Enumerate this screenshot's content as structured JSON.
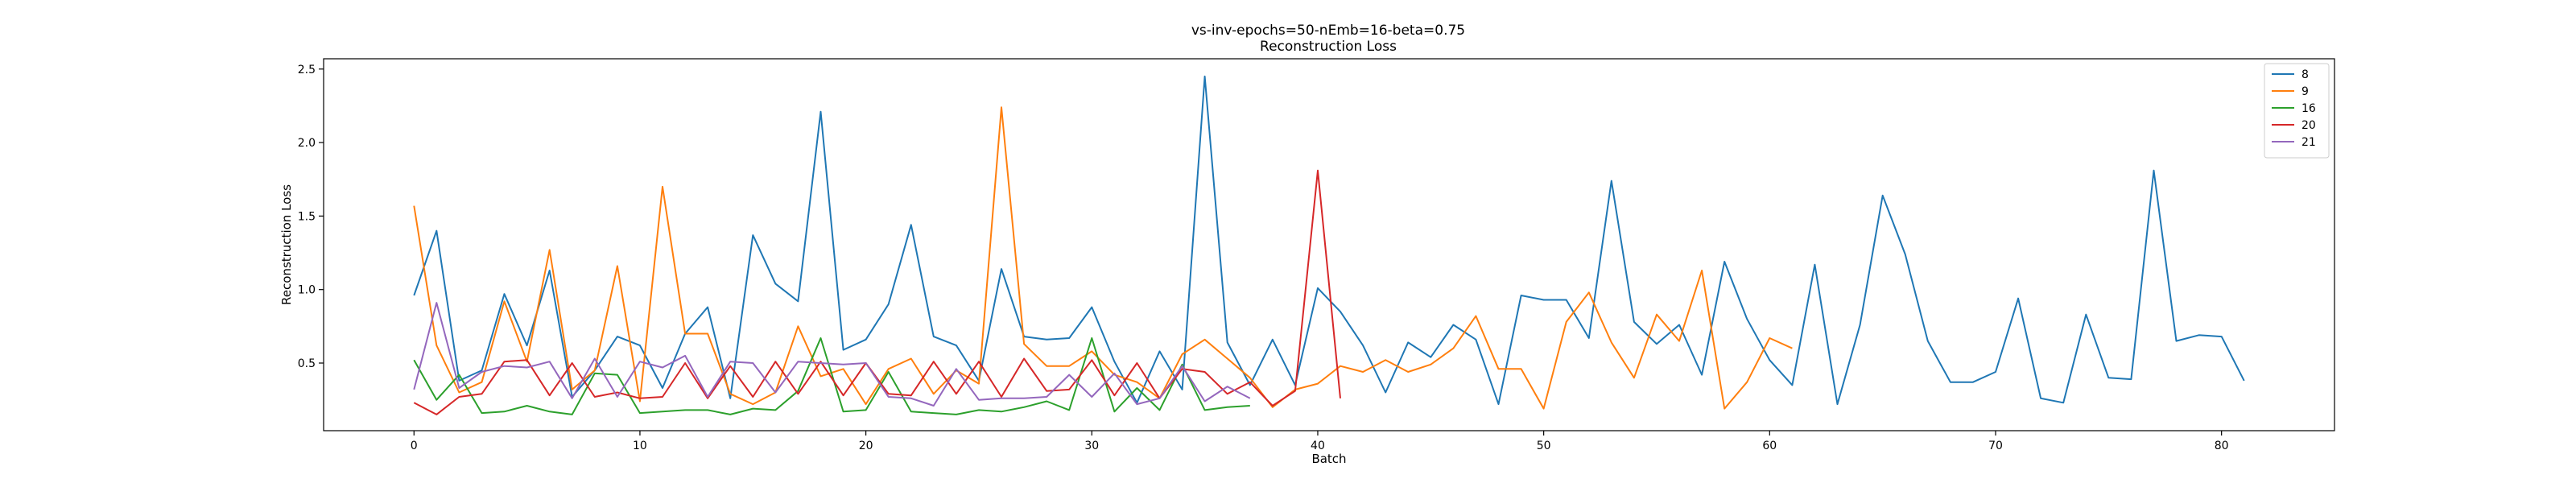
{
  "chart_data": {
    "type": "line",
    "title": "vs-inv-epochs=50-nEmb=16-beta=0.75",
    "subtitle": "Reconstruction Loss",
    "xlabel": "Batch",
    "ylabel": "Reconstruction Loss",
    "xlim": [
      -4,
      85
    ],
    "ylim": [
      0.04,
      2.57
    ],
    "xticks": [
      0,
      10,
      20,
      30,
      40,
      50,
      60,
      70,
      80
    ],
    "yticks": [
      0.5,
      1.0,
      1.5,
      2.0,
      2.5
    ],
    "ytick_labels": [
      "0.5",
      "1.0",
      "1.5",
      "2.0",
      "2.5"
    ],
    "grid": false,
    "legend_position": "top-right",
    "series": [
      {
        "name": "8",
        "color": "#1f77b4",
        "values": [
          0.96,
          1.4,
          0.38,
          0.45,
          0.97,
          0.62,
          1.13,
          0.27,
          0.45,
          0.68,
          0.62,
          0.33,
          0.7,
          0.88,
          0.26,
          1.37,
          1.04,
          0.92,
          2.21,
          0.59,
          0.66,
          0.9,
          1.44,
          0.68,
          0.62,
          0.38,
          1.14,
          0.68,
          0.66,
          0.67,
          0.88,
          0.51,
          0.23,
          0.58,
          0.32,
          2.45,
          0.64,
          0.35,
          0.66,
          0.35,
          1.01,
          0.85,
          0.62,
          0.3,
          0.64,
          0.54,
          0.76,
          0.66,
          0.22,
          0.96,
          0.93,
          0.93,
          0.67,
          1.74,
          0.78,
          0.63,
          0.76,
          0.42,
          1.19,
          0.8,
          0.52,
          0.35,
          1.17,
          0.22,
          0.76,
          1.64,
          1.24,
          0.65,
          0.37,
          0.37,
          0.44,
          0.94,
          0.26,
          0.23,
          0.83,
          0.4,
          0.39,
          1.81,
          0.65,
          0.69,
          0.68,
          0.38
        ]
      },
      {
        "name": "9",
        "color": "#ff7f0e",
        "values": [
          1.57,
          0.62,
          0.3,
          0.37,
          0.92,
          0.51,
          1.27,
          0.32,
          0.45,
          1.16,
          0.24,
          1.7,
          0.7,
          0.7,
          0.29,
          0.22,
          0.3,
          0.75,
          0.41,
          0.46,
          0.22,
          0.46,
          0.53,
          0.29,
          0.45,
          0.36,
          2.24,
          0.63,
          0.48,
          0.48,
          0.58,
          0.42,
          0.37,
          0.26,
          0.56,
          0.66,
          0.53,
          0.4,
          0.2,
          0.32,
          0.36,
          0.48,
          0.44,
          0.52,
          0.44,
          0.49,
          0.6,
          0.82,
          0.46,
          0.46,
          0.19,
          0.78,
          0.98,
          0.64,
          0.4,
          0.83,
          0.65,
          1.13,
          0.19,
          0.37,
          0.67,
          0.6
        ]
      },
      {
        "name": "16",
        "color": "#2ca02c",
        "values": [
          0.52,
          0.25,
          0.42,
          0.16,
          0.17,
          0.21,
          0.17,
          0.15,
          0.43,
          0.42,
          0.16,
          0.17,
          0.18,
          0.18,
          0.15,
          0.19,
          0.18,
          0.31,
          0.67,
          0.17,
          0.18,
          0.44,
          0.17,
          0.16,
          0.15,
          0.18,
          0.17,
          0.2,
          0.24,
          0.18,
          0.67,
          0.17,
          0.33,
          0.18,
          0.49,
          0.18,
          0.2,
          0.21
        ]
      },
      {
        "name": "20",
        "color": "#d62728",
        "values": [
          0.23,
          0.15,
          0.27,
          0.29,
          0.51,
          0.52,
          0.28,
          0.5,
          0.27,
          0.3,
          0.26,
          0.27,
          0.5,
          0.26,
          0.48,
          0.27,
          0.51,
          0.29,
          0.51,
          0.28,
          0.5,
          0.29,
          0.28,
          0.51,
          0.29,
          0.51,
          0.27,
          0.53,
          0.31,
          0.32,
          0.52,
          0.28,
          0.5,
          0.26,
          0.46,
          0.44,
          0.29,
          0.37,
          0.21,
          0.31,
          1.81,
          0.26
        ]
      },
      {
        "name": "21",
        "color": "#9467bd",
        "values": [
          0.32,
          0.91,
          0.33,
          0.44,
          0.48,
          0.47,
          0.51,
          0.26,
          0.53,
          0.27,
          0.51,
          0.47,
          0.55,
          0.27,
          0.51,
          0.5,
          0.3,
          0.51,
          0.5,
          0.49,
          0.5,
          0.27,
          0.26,
          0.21,
          0.46,
          0.25,
          0.26,
          0.26,
          0.27,
          0.42,
          0.27,
          0.43,
          0.22,
          0.26,
          0.48,
          0.24,
          0.34,
          0.26
        ]
      }
    ]
  }
}
